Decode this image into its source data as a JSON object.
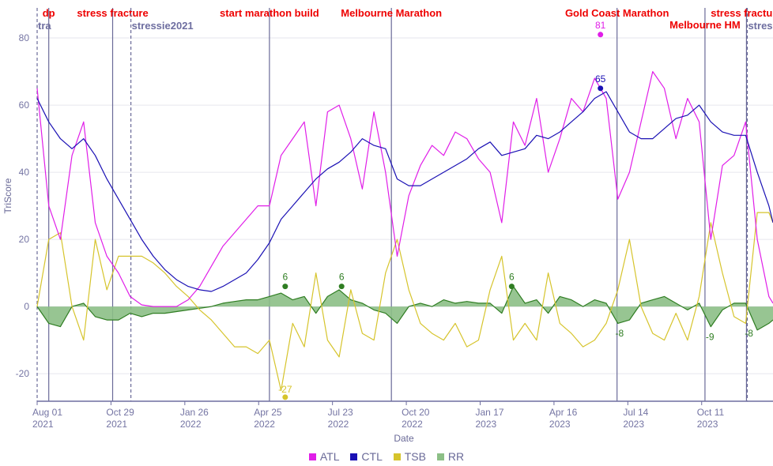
{
  "chart_data": {
    "type": "line",
    "xlabel": "Date",
    "ylabel": "TriScore",
    "xlim": [
      "2021-08-01",
      "2024-01-05"
    ],
    "ylim": [
      -28.2,
      86.6
    ],
    "yticks": [
      -20,
      0,
      20,
      40,
      60,
      80
    ],
    "xticks": [
      {
        "date": "2021-08-01",
        "line1": "Aug 01",
        "line2": "2021"
      },
      {
        "date": "2021-10-29",
        "line1": "Oct 29",
        "line2": "2021"
      },
      {
        "date": "2022-01-26",
        "line1": "Jan 26",
        "line2": "2022"
      },
      {
        "date": "2022-04-25",
        "line1": "Apr 25",
        "line2": "2022"
      },
      {
        "date": "2022-07-23",
        "line1": "Jul 23",
        "line2": "2022"
      },
      {
        "date": "2022-10-20",
        "line1": "Oct 20",
        "line2": "2022"
      },
      {
        "date": "2023-01-17",
        "line1": "Jan 17",
        "line2": "2023"
      },
      {
        "date": "2023-04-16",
        "line1": "Apr 16",
        "line2": "2023"
      },
      {
        "date": "2023-07-14",
        "line1": "Jul 14",
        "line2": "2023"
      },
      {
        "date": "2023-10-11",
        "line1": "Oct 11",
        "line2": "2023"
      }
    ],
    "grid": true,
    "legend_position": "bottom",
    "x": [
      "2021-08-01",
      "2021-08-15",
      "2021-08-29",
      "2021-09-12",
      "2021-09-26",
      "2021-10-10",
      "2021-10-24",
      "2021-11-07",
      "2021-11-21",
      "2021-12-05",
      "2021-12-19",
      "2022-01-02",
      "2022-01-16",
      "2022-01-30",
      "2022-02-13",
      "2022-02-27",
      "2022-03-13",
      "2022-03-27",
      "2022-04-10",
      "2022-04-24",
      "2022-05-08",
      "2022-05-22",
      "2022-06-05",
      "2022-06-19",
      "2022-07-03",
      "2022-07-17",
      "2022-07-31",
      "2022-08-14",
      "2022-08-28",
      "2022-09-11",
      "2022-09-25",
      "2022-10-09",
      "2022-10-23",
      "2022-11-06",
      "2022-11-20",
      "2022-12-04",
      "2022-12-18",
      "2023-01-01",
      "2023-01-15",
      "2023-01-29",
      "2023-02-12",
      "2023-02-26",
      "2023-03-12",
      "2023-03-26",
      "2023-04-09",
      "2023-04-23",
      "2023-05-07",
      "2023-05-21",
      "2023-06-04",
      "2023-06-18",
      "2023-07-02",
      "2023-07-16",
      "2023-07-30",
      "2023-08-13",
      "2023-08-27",
      "2023-09-10",
      "2023-09-24",
      "2023-10-08",
      "2023-10-22",
      "2023-11-05",
      "2023-11-19",
      "2023-12-03",
      "2023-12-17",
      "2023-12-31",
      "2024-01-05"
    ],
    "series": [
      {
        "name": "ATL",
        "color": "#e01ee8",
        "values": [
          65,
          30,
          20,
          45,
          55,
          25,
          15,
          10,
          3,
          0.5,
          0,
          0,
          0,
          2,
          6,
          12,
          18,
          22,
          26,
          30,
          30,
          45,
          50,
          55,
          30,
          58,
          60,
          50,
          35,
          58,
          40,
          15,
          33,
          42,
          48,
          45,
          52,
          50,
          44,
          40,
          25,
          55,
          48,
          62,
          40,
          50,
          62,
          58,
          68,
          62,
          32,
          40,
          55,
          70,
          65,
          50,
          62,
          55,
          20,
          42,
          45,
          55,
          20,
          3,
          1
        ]
      },
      {
        "name": "CTL",
        "color": "#1a10b4",
        "values": [
          62,
          55,
          50,
          47,
          50,
          45,
          38,
          32,
          26,
          20,
          15,
          11,
          8,
          6,
          5,
          4.5,
          6,
          8,
          10,
          14,
          19,
          26,
          30,
          34,
          38,
          41,
          43,
          46,
          50,
          48,
          47,
          38,
          36,
          36,
          38,
          40,
          42,
          44,
          47,
          49,
          45,
          46,
          47,
          51,
          50,
          52,
          55,
          58,
          62,
          64,
          58,
          52,
          50,
          50,
          53,
          56,
          57,
          60,
          55,
          52,
          51,
          51,
          40,
          30,
          25
        ]
      },
      {
        "name": "TSB",
        "color": "#d6c42c",
        "values": [
          0,
          20,
          22,
          0,
          -10,
          20,
          5,
          15,
          15,
          15,
          13,
          10,
          6,
          3,
          -1,
          -4,
          -8,
          -12,
          -12,
          -14,
          -10,
          -25,
          -5,
          -12,
          10,
          -10,
          -15,
          5,
          -8,
          -10,
          10,
          20,
          5,
          -5,
          -8,
          -10,
          -5,
          -12,
          -10,
          5,
          15,
          -10,
          -5,
          -10,
          10,
          -5,
          -8,
          -12,
          -10,
          -5,
          5,
          20,
          0,
          -8,
          -10,
          -2,
          -10,
          3,
          25,
          10,
          -3,
          -5,
          28,
          28,
          25
        ]
      },
      {
        "name": "RR",
        "color": "#2f7d22",
        "fill": "#8cbf86",
        "values": [
          0,
          -5,
          -6,
          0,
          1,
          -3,
          -4,
          -4,
          -2,
          -3,
          -2,
          -2,
          -1.5,
          -1,
          -0.5,
          0,
          1,
          1.5,
          2,
          2,
          3,
          4,
          2,
          3,
          -2,
          3,
          5,
          2,
          1,
          -1,
          -2,
          -5,
          0,
          1,
          0,
          2,
          1,
          1.5,
          1,
          1,
          -2,
          6,
          1,
          2,
          -2,
          3,
          2,
          0,
          2,
          1,
          -5,
          -4,
          1,
          2,
          3,
          1,
          -1,
          1,
          -6,
          -1,
          1,
          1,
          -7,
          -5,
          -4
        ]
      }
    ],
    "point_labels": [
      {
        "series": "ATL",
        "date": "2023-06-11",
        "value": 81,
        "label": "81"
      },
      {
        "series": "CTL",
        "date": "2023-06-11",
        "value": 65,
        "label": "65"
      },
      {
        "series": "TSB",
        "date": "2022-05-27",
        "value": -27,
        "label": "-27"
      },
      {
        "series": "RR",
        "date": "2022-05-27",
        "value": 6,
        "label": "6"
      },
      {
        "series": "RR",
        "date": "2022-08-03",
        "value": 6,
        "label": "6"
      },
      {
        "series": "RR",
        "date": "2023-02-24",
        "value": 6,
        "label": "6"
      },
      {
        "series": "RR",
        "date": "2023-07-04",
        "value": -8,
        "label": "-8"
      },
      {
        "series": "RR",
        "date": "2023-10-21",
        "value": -9,
        "label": "-9"
      },
      {
        "series": "RR",
        "date": "2023-12-07",
        "value": -8,
        "label": "-8"
      }
    ],
    "events": [
      {
        "date": "2021-08-01",
        "text": "tra",
        "style": "dashed"
      },
      {
        "date": "2021-08-15",
        "text": "dp",
        "style": "solid"
      },
      {
        "date": "2021-10-31",
        "text": "stress fracture",
        "style": "solid"
      },
      {
        "date": "2021-11-22",
        "text": "stressie2021",
        "style": "dashed"
      },
      {
        "date": "2022-05-08",
        "text": "start marathon build",
        "style": "solid"
      },
      {
        "date": "2022-10-02",
        "text": "Melbourne Marathon",
        "style": "solid"
      },
      {
        "date": "2023-07-01",
        "text": "Gold Coast Marathon",
        "style": "solid"
      },
      {
        "date": "2023-10-15",
        "text": "Melbourne HM",
        "style": "solid",
        "row": 2
      },
      {
        "date": "2023-12-04",
        "text": "stress fracture",
        "style": "solid"
      },
      {
        "date": "2023-12-05",
        "text": "stressie",
        "style": "dashed"
      }
    ]
  },
  "legend": {
    "items": [
      {
        "label": "ATL",
        "color": "#e01ee8"
      },
      {
        "label": "CTL",
        "color": "#1a10b4"
      },
      {
        "label": "TSB",
        "color": "#d6c42c"
      },
      {
        "label": "RR",
        "color": "#8cbf86"
      }
    ]
  }
}
